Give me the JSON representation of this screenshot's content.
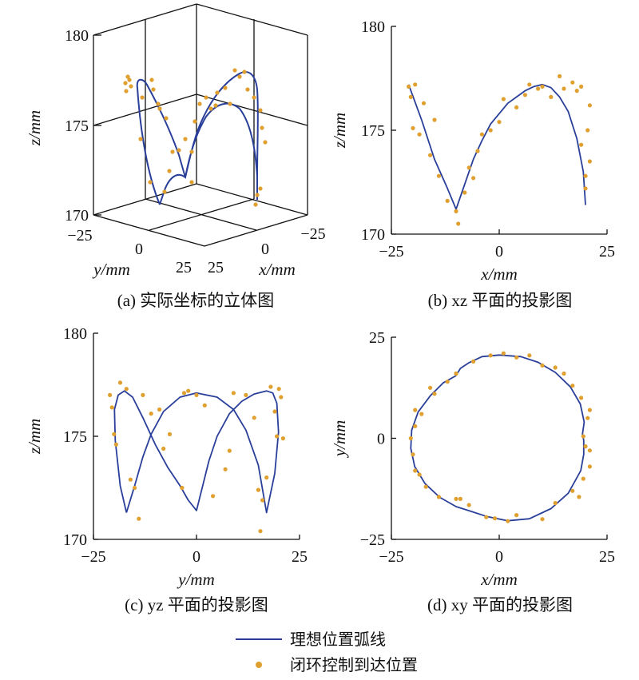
{
  "colors": {
    "line": "#2a3f99",
    "points": "#e0a030",
    "axis": "#111111"
  },
  "legend": {
    "line_label": "理想位置弧线",
    "points_label": "闭环控制到达位置"
  },
  "chart_data": [
    {
      "type": "line3d",
      "caption": "(a) 实际坐标的立体图",
      "xlabel": "x/mm",
      "ylabel": "y/mm",
      "zlabel": "z/mm",
      "xlim": [
        -25,
        25
      ],
      "ylim": [
        -25,
        25
      ],
      "zlim": [
        170,
        180
      ],
      "xticks": [
        "−25",
        "0",
        "25"
      ],
      "yticks": [
        "−25",
        "0",
        "25"
      ],
      "zticks": [
        "170",
        "175",
        "180"
      ],
      "grid": true
    },
    {
      "type": "line",
      "caption": "(b) xz 平面的投影图",
      "xlabel": "x/mm",
      "ylabel": "z/mm",
      "xlim": [
        -25,
        25
      ],
      "ylim": [
        170,
        180
      ],
      "xticks": [
        -25,
        0,
        25
      ],
      "yticks": [
        170,
        175,
        180
      ],
      "line": [
        [
          -21,
          177.2
        ],
        [
          -18,
          175.5
        ],
        [
          -15,
          173.6
        ],
        [
          -12,
          172.2
        ],
        [
          -10,
          171.2
        ],
        [
          -8,
          172.4
        ],
        [
          -6,
          173.6
        ],
        [
          -4,
          174.5
        ],
        [
          -2,
          175.3
        ],
        [
          0,
          175.8
        ],
        [
          2,
          176.3
        ],
        [
          4,
          176.6
        ],
        [
          6,
          176.9
        ],
        [
          8,
          177.1
        ],
        [
          10,
          177.2
        ],
        [
          12,
          177.05
        ],
        [
          14,
          176.6
        ],
        [
          16,
          175.9
        ],
        [
          18,
          174.6
        ],
        [
          19.5,
          173
        ],
        [
          20,
          171.4
        ]
      ],
      "points": [
        [
          -21,
          177.1
        ],
        [
          -20.5,
          176.6
        ],
        [
          -19.5,
          177.2
        ],
        [
          -20,
          175.1
        ],
        [
          -18.5,
          174.8
        ],
        [
          -17.5,
          176.3
        ],
        [
          -16,
          173.8
        ],
        [
          -15,
          175.5
        ],
        [
          -14,
          172.8
        ],
        [
          -12,
          171.6
        ],
        [
          -10,
          171.1
        ],
        [
          -9.5,
          170.5
        ],
        [
          -8,
          172.0
        ],
        [
          -7,
          173.2
        ],
        [
          -6,
          172.7
        ],
        [
          -5,
          174.0
        ],
        [
          -4,
          174.8
        ],
        [
          -2,
          175.0
        ],
        [
          0,
          175.4
        ],
        [
          1,
          176.5
        ],
        [
          4,
          176.1
        ],
        [
          6,
          176.7
        ],
        [
          7,
          177.2
        ],
        [
          9,
          177.0
        ],
        [
          10,
          177.1
        ],
        [
          12,
          176.6
        ],
        [
          14,
          177.6
        ],
        [
          15,
          177.0
        ],
        [
          17,
          177.3
        ],
        [
          18,
          176.9
        ],
        [
          19,
          177.1
        ],
        [
          21,
          176.2
        ],
        [
          20,
          172.2
        ],
        [
          19,
          174.3
        ],
        [
          20.5,
          175.0
        ],
        [
          21,
          173.5
        ],
        [
          20,
          172.8
        ]
      ]
    },
    {
      "type": "line",
      "caption": "(c) yz 平面的投影图",
      "xlabel": "y/mm",
      "ylabel": "z/mm",
      "xlim": [
        -25,
        25
      ],
      "ylim": [
        170,
        180
      ],
      "xticks": [
        -25,
        0,
        25
      ],
      "yticks": [
        170,
        175,
        180
      ],
      "line": [
        [
          -17,
          171.3
        ],
        [
          -18.5,
          172.6
        ],
        [
          -19.7,
          174.8
        ],
        [
          -19.9,
          176.3
        ],
        [
          -19,
          177.0
        ],
        [
          -17.5,
          177.2
        ],
        [
          -15.5,
          176.9
        ],
        [
          -13,
          175.9
        ],
        [
          -10,
          174.6
        ],
        [
          -7,
          173.5
        ],
        [
          -4,
          172.6
        ],
        [
          -2,
          171.9
        ],
        [
          0,
          171.4
        ],
        [
          1,
          172.2
        ],
        [
          3,
          173.8
        ],
        [
          5,
          175.0
        ],
        [
          8,
          176.1
        ],
        [
          11,
          176.7
        ],
        [
          14,
          177.05
        ],
        [
          17,
          177.2
        ],
        [
          18.5,
          177.1
        ],
        [
          19.5,
          176.6
        ],
        [
          19.9,
          175.2
        ],
        [
          19,
          173.2
        ],
        [
          17,
          171.3
        ],
        [
          15,
          173.6
        ],
        [
          12,
          175.3
        ],
        [
          9,
          176.3
        ],
        [
          5,
          176.9
        ],
        [
          0,
          177.1
        ],
        [
          -4,
          176.9
        ],
        [
          -8,
          176.2
        ],
        [
          -11,
          175.1
        ],
        [
          -13,
          174.0
        ],
        [
          -15,
          172.6
        ],
        [
          -17,
          171.3
        ]
      ],
      "points": [
        [
          -21,
          177.0
        ],
        [
          -20.5,
          176.4
        ],
        [
          -20,
          175.1
        ],
        [
          -19.5,
          174.6
        ],
        [
          -18.5,
          177.6
        ],
        [
          -17,
          177.3
        ],
        [
          -16,
          172.9
        ],
        [
          -15,
          172.5
        ],
        [
          -14,
          171.0
        ],
        [
          -13,
          177.0
        ],
        [
          -11,
          176.1
        ],
        [
          -9,
          176.3
        ],
        [
          -8,
          174.4
        ],
        [
          -6.5,
          175.1
        ],
        [
          -3.5,
          172.5
        ],
        [
          -2,
          177.2
        ],
        [
          -3,
          177.1
        ],
        [
          0,
          177.0
        ],
        [
          2,
          176.5
        ],
        [
          4,
          172.1
        ],
        [
          7,
          173.4
        ],
        [
          8,
          174.3
        ],
        [
          9,
          177.1
        ],
        [
          12,
          177.0
        ],
        [
          14,
          175.9
        ],
        [
          15,
          172.4
        ],
        [
          15.5,
          170.4
        ],
        [
          16,
          171.9
        ],
        [
          17,
          173.0
        ],
        [
          18,
          177.4
        ],
        [
          19,
          176.2
        ],
        [
          19.5,
          175.0
        ],
        [
          20,
          177.3
        ],
        [
          21,
          174.9
        ],
        [
          20.5,
          176.9
        ]
      ]
    },
    {
      "type": "line",
      "caption": "(d) xy 平面的投影图",
      "xlabel": "x/mm",
      "ylabel": "y/mm",
      "xlim": [
        -25,
        25
      ],
      "ylim": [
        -25,
        25
      ],
      "xticks": [
        -25,
        0,
        25
      ],
      "yticks": [
        -25,
        0,
        25
      ],
      "line": [
        [
          -10,
          15.5
        ],
        [
          -13,
          13.7
        ],
        [
          -16,
          10.5
        ],
        [
          -18.8,
          6.5
        ],
        [
          -20.3,
          2
        ],
        [
          -20.5,
          -2.5
        ],
        [
          -19.6,
          -7
        ],
        [
          -17.2,
          -11.2
        ],
        [
          -13.8,
          -14.6
        ],
        [
          -10,
          -16.9
        ],
        [
          -7,
          -17.9
        ],
        [
          -3,
          -19.3
        ],
        [
          2,
          -20.4
        ],
        [
          7,
          -19.9
        ],
        [
          12,
          -17.4
        ],
        [
          16,
          -13.6
        ],
        [
          18.9,
          -8
        ],
        [
          19.6,
          -4
        ],
        [
          19.6,
          -0.5
        ],
        [
          19.3,
          1
        ],
        [
          19.7,
          4
        ],
        [
          18.8,
          8.5
        ],
        [
          16.5,
          12.7
        ],
        [
          13,
          16.3
        ],
        [
          9,
          18.8
        ],
        [
          5,
          20.2
        ],
        [
          0,
          20.6
        ],
        [
          -4,
          20.2
        ],
        [
          -7,
          18.7
        ],
        [
          -9,
          17.3
        ],
        [
          -10,
          15.5
        ]
      ]
    }
  ]
}
